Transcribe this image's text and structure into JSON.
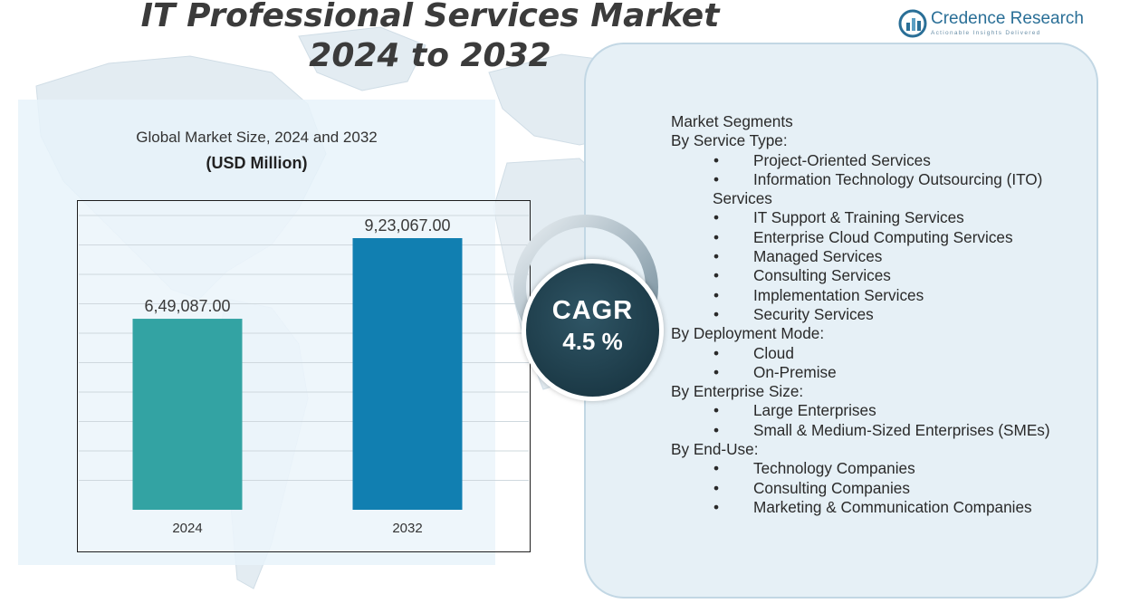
{
  "title": {
    "line1": "IT Professional Services Market",
    "line2": "2024 to 2032"
  },
  "brand": {
    "name": "Credence Research",
    "tagline": "Actionable Insights Delivered"
  },
  "chart_data": {
    "type": "bar",
    "title": "Global Market Size,  2024 and 2032",
    "unit": "(USD Million)",
    "categories": [
      "2024",
      "2032"
    ],
    "values": [
      649087.0,
      923067.0
    ],
    "value_labels": [
      "6,49,087.00",
      "9,23,067.00"
    ],
    "colors": [
      "#33a3a3",
      "#117fb1"
    ],
    "ylim": [
      0,
      1000000
    ],
    "grid": true,
    "legend": "none"
  },
  "cagr": {
    "label": "CAGR",
    "value": "4.5 %"
  },
  "segments": {
    "header": "Market Segments",
    "groups": [
      {
        "title": "By Service Type:",
        "items": [
          "Project-Oriented Services",
          "Information Technology Outsourcing (ITO)",
          "IT Support & Training Services",
          "Enterprise Cloud Computing Services",
          "Managed Services",
          "Consulting Services",
          "Implementation Services",
          "Security Services"
        ],
        "continuation": "Services"
      },
      {
        "title": "By Deployment Mode:",
        "items": [
          "Cloud",
          "On-Premise"
        ]
      },
      {
        "title": "By Enterprise Size:",
        "items": [
          "Large Enterprises",
          "Small & Medium-Sized Enterprises (SMEs)"
        ]
      },
      {
        "title": "By End-Use:",
        "items": [
          "Technology Companies",
          "Consulting Companies",
          "Marketing & Communication Companies"
        ]
      }
    ]
  }
}
